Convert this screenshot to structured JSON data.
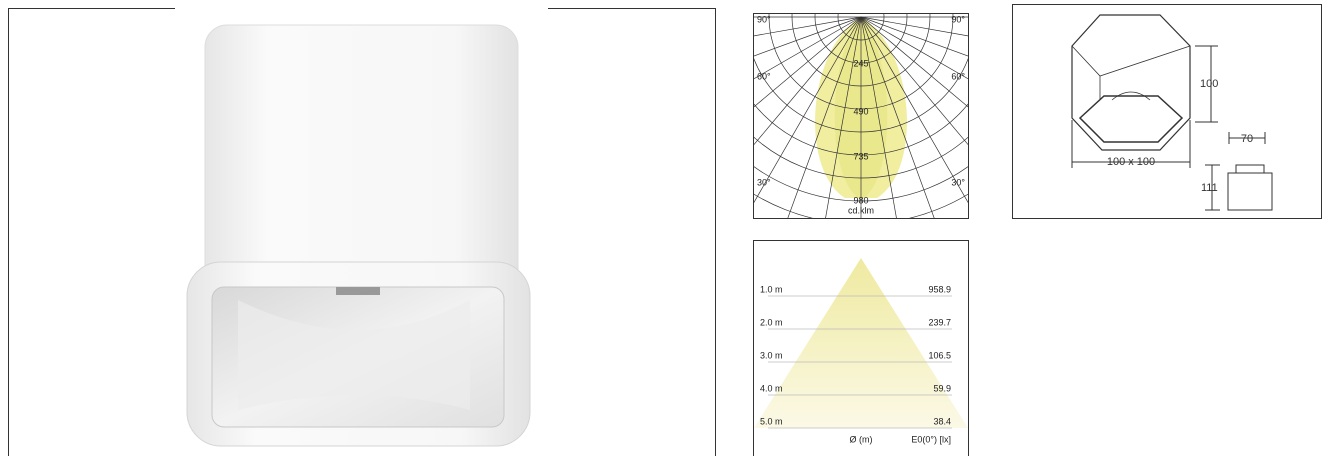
{
  "polar": {
    "angle_labels": [
      "90°",
      "90°",
      "60°",
      "60°",
      "30°",
      "30°"
    ],
    "ring_labels": [
      "245",
      "490",
      "735",
      "980"
    ],
    "unit": "cd.klm"
  },
  "dimensions": {
    "height": "100",
    "inner": "70",
    "footprint": "100 x 100",
    "depth": "111"
  },
  "illuminance": {
    "rows": [
      {
        "distance": "1.0 m",
        "lux": "958.9"
      },
      {
        "distance": "2.0 m",
        "lux": "239.7"
      },
      {
        "distance": "3.0 m",
        "lux": "106.5"
      },
      {
        "distance": "4.0 m",
        "lux": "59.9"
      },
      {
        "distance": "5.0 m",
        "lux": "38.4"
      }
    ],
    "distance_header": "Ø (m)",
    "lux_header": "E0(0°) [lx]"
  }
}
